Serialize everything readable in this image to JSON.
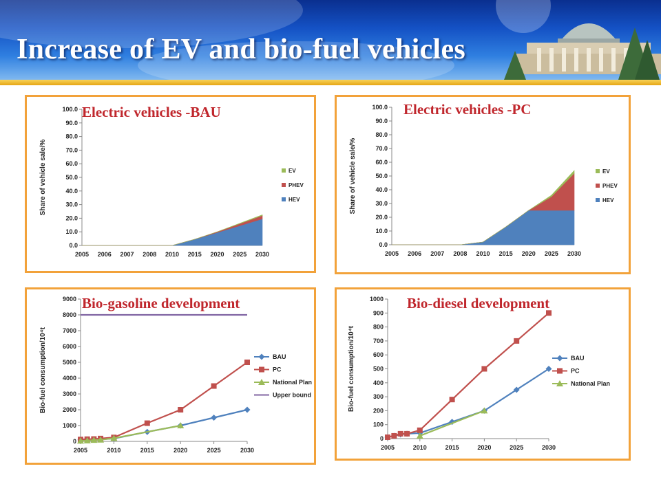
{
  "slide": {
    "title": "Increase of EV and bio-fuel vehicles"
  },
  "colors": {
    "header": "#1a4fc0",
    "title_text": "#ffffff",
    "panel_border": "#f2a23a",
    "panel_title": "#c0272d",
    "ev": "#9bbb59",
    "phev": "#c0504d",
    "hev": "#4f81bd",
    "upper_bound": "#8064a2"
  },
  "icons": [
    "university-building-illustration"
  ],
  "chart_data": [
    {
      "type": "area",
      "title": "Electric vehicles -BAU",
      "ylabel": "Share of vehicle sale/%",
      "xlabel": "",
      "categories": [
        "2005",
        "2006",
        "2007",
        "2008",
        "2010",
        "2015",
        "2020",
        "2025",
        "2030"
      ],
      "ylim": [
        0,
        100
      ],
      "yticks": [
        "100.0",
        "90.0",
        "80.0",
        "70.0",
        "60.0",
        "50.0",
        "40.0",
        "30.0",
        "20.0",
        "10.0",
        "0.0"
      ],
      "stacked": true,
      "legend": "right",
      "series": [
        {
          "name": "EV",
          "color": "#9bbb59",
          "values": [
            0,
            0,
            0,
            0,
            0,
            0,
            0,
            0.3,
            0.5
          ]
        },
        {
          "name": "PHEV",
          "color": "#c0504d",
          "values": [
            0,
            0,
            0,
            0,
            0,
            0,
            0.5,
            1.5,
            2.5
          ]
        },
        {
          "name": "HEV",
          "color": "#4f81bd",
          "values": [
            0,
            0,
            0,
            0,
            0,
            4.5,
            9.5,
            14.5,
            19.5
          ]
        }
      ]
    },
    {
      "type": "area",
      "title": "Electric vehicles -PC",
      "ylabel": "Share of vehicle sale/%",
      "xlabel": "",
      "categories": [
        "2005",
        "2006",
        "2007",
        "2008",
        "2010",
        "2015",
        "2020",
        "2025",
        "2030"
      ],
      "ylim": [
        0,
        100
      ],
      "yticks": [
        "100.0",
        "90.0",
        "80.0",
        "70.0",
        "60.0",
        "50.0",
        "40.0",
        "30.0",
        "20.0",
        "10.0",
        "0.0"
      ],
      "stacked": true,
      "legend": "right",
      "series": [
        {
          "name": "EV",
          "color": "#9bbb59",
          "values": [
            0,
            0,
            0,
            0,
            0,
            0,
            0,
            1,
            2
          ]
        },
        {
          "name": "PHEV",
          "color": "#c0504d",
          "values": [
            0,
            0,
            0,
            0,
            0,
            0,
            0,
            10,
            27
          ]
        },
        {
          "name": "HEV",
          "color": "#4f81bd",
          "values": [
            0,
            0,
            0,
            0,
            2,
            13,
            25,
            25,
            25
          ]
        }
      ]
    },
    {
      "type": "line",
      "title": "Bio-gasoline development",
      "ylabel": "Bio-fuel consumption/10⁴t",
      "xlabel": "",
      "x": [
        2005,
        2006,
        2007,
        2008,
        2010,
        2015,
        2020,
        2025,
        2030
      ],
      "xticks": [
        "2005",
        "2010",
        "2015",
        "2020",
        "2025",
        "2030"
      ],
      "ylim": [
        0,
        9000
      ],
      "yticks": [
        "9000",
        "8000",
        "7000",
        "6000",
        "5000",
        "4000",
        "3000",
        "2000",
        "1000",
        "0"
      ],
      "legend": "right",
      "series": [
        {
          "name": "BAU",
          "color": "#4f81bd",
          "marker": "diamond",
          "points": [
            [
              2005,
              100
            ],
            [
              2006,
              110
            ],
            [
              2007,
              120
            ],
            [
              2008,
              130
            ],
            [
              2010,
              180
            ],
            [
              2015,
              600
            ],
            [
              2020,
              1000
            ],
            [
              2025,
              1500
            ],
            [
              2030,
              2000
            ]
          ]
        },
        {
          "name": "PC",
          "color": "#c0504d",
          "marker": "square",
          "points": [
            [
              2005,
              120
            ],
            [
              2006,
              140
            ],
            [
              2007,
              150
            ],
            [
              2008,
              180
            ],
            [
              2010,
              250
            ],
            [
              2015,
              1150
            ],
            [
              2020,
              2000
            ],
            [
              2025,
              3500
            ],
            [
              2030,
              5000
            ]
          ]
        },
        {
          "name": "National Plan",
          "color": "#9bbb59",
          "marker": "triangle",
          "points": [
            [
              2005,
              30
            ],
            [
              2006,
              50
            ],
            [
              2007,
              80
            ],
            [
              2008,
              100
            ],
            [
              2010,
              200
            ],
            [
              2020,
              1000
            ]
          ]
        },
        {
          "name": "Upper bound",
          "color": "#8064a2",
          "marker": "none",
          "points": [
            [
              2005,
              8000
            ],
            [
              2030,
              8000
            ]
          ]
        }
      ]
    },
    {
      "type": "line",
      "title": "Bio-diesel development",
      "ylabel": "Bio-fuel consumption/10⁴t",
      "xlabel": "",
      "x": [
        2005,
        2006,
        2007,
        2008,
        2010,
        2015,
        2020,
        2025,
        2030
      ],
      "xticks": [
        "2005",
        "2010",
        "2015",
        "2020",
        "2025",
        "2030"
      ],
      "ylim": [
        0,
        1000
      ],
      "yticks": [
        "1000",
        "900",
        "800",
        "700",
        "600",
        "500",
        "400",
        "300",
        "200",
        "100",
        "0"
      ],
      "legend": "right",
      "series": [
        {
          "name": "BAU",
          "color": "#4f81bd",
          "marker": "diamond",
          "points": [
            [
              2005,
              10
            ],
            [
              2006,
              20
            ],
            [
              2007,
              30
            ],
            [
              2008,
              35
            ],
            [
              2010,
              40
            ],
            [
              2015,
              120
            ],
            [
              2020,
              200
            ],
            [
              2025,
              350
            ],
            [
              2030,
              500
            ]
          ]
        },
        {
          "name": "PC",
          "color": "#c0504d",
          "marker": "square",
          "points": [
            [
              2005,
              10
            ],
            [
              2006,
              20
            ],
            [
              2007,
              35
            ],
            [
              2008,
              35
            ],
            [
              2010,
              60
            ],
            [
              2015,
              280
            ],
            [
              2020,
              500
            ],
            [
              2025,
              700
            ],
            [
              2030,
              900
            ]
          ]
        },
        {
          "name": "National Plan",
          "color": "#9bbb59",
          "marker": "triangle",
          "points": [
            [
              2010,
              20
            ],
            [
              2020,
              200
            ]
          ]
        }
      ]
    }
  ]
}
